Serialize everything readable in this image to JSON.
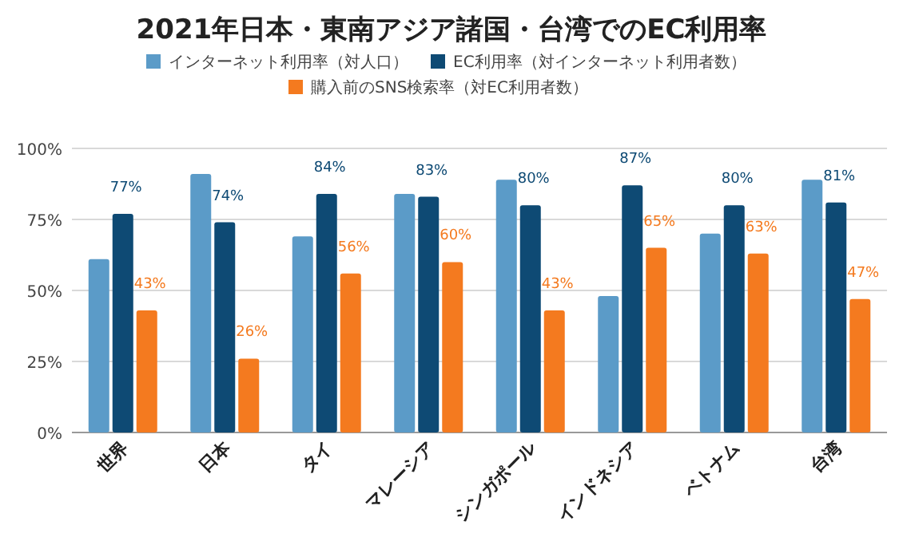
{
  "chart_data": {
    "type": "bar",
    "title": "2021年日本・東南アジア諸国・台湾でのEC利用率",
    "categories": [
      "世界",
      "日本",
      "タイ",
      "マレーシア",
      "シンガポール",
      "インドネシア",
      "ベトナム",
      "台湾"
    ],
    "series": [
      {
        "name": "インターネット利用率（対人口）",
        "color": "#5b9bc8",
        "values": [
          61,
          91,
          69,
          84,
          89,
          48,
          70,
          89
        ]
      },
      {
        "name": "EC利用率（対インターネット利用者数）",
        "color": "#0e4a74",
        "values": [
          77,
          74,
          84,
          83,
          80,
          87,
          80,
          81
        ],
        "value_labels": [
          "77%",
          "74%",
          "84%",
          "83%",
          "80%",
          "87%",
          "80%",
          "81%"
        ]
      },
      {
        "name": "購入前のSNS検索率（対EC利用者数）",
        "color": "#f47a1f",
        "values": [
          43,
          26,
          56,
          60,
          43,
          65,
          63,
          47
        ],
        "value_labels": [
          "43%",
          "26%",
          "56%",
          "60%",
          "43%",
          "65%",
          "63%",
          "47%"
        ]
      }
    ],
    "ylim": [
      0,
      100
    ],
    "yticks": [
      {
        "value": 0,
        "label": "0%"
      },
      {
        "value": 25,
        "label": "25%"
      },
      {
        "value": 50,
        "label": "50%"
      },
      {
        "value": 75,
        "label": "75%"
      },
      {
        "value": 100,
        "label": "100%"
      }
    ],
    "grid": "y",
    "legend": "top"
  }
}
